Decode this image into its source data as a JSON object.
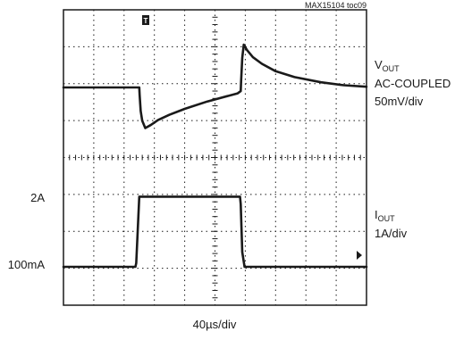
{
  "chart_data": {
    "type": "line",
    "figure_id": "MAX15104 toc09",
    "xlabel": "40µs/div",
    "x_unit": "µs",
    "xlim": [
      0,
      400
    ],
    "grid": "10x8 divisions, dotted",
    "right_labels": {
      "vout": {
        "name": "V",
        "sub": "OUT",
        "line2": "AC-COUPLED",
        "line3": "50mV/div"
      },
      "iout": {
        "name": "I",
        "sub": "OUT",
        "line2": "1A/div"
      }
    },
    "left_labels": {
      "high": "2A",
      "low": "100mA"
    },
    "trigger_marker": "T",
    "series": [
      {
        "name": "VOUT",
        "unit": "mV",
        "x": [
          0,
          100,
          100.5,
          102,
          104,
          108,
          115,
          125,
          140,
          160,
          190,
          230,
          234,
          234.5,
          236,
          238,
          242,
          250,
          262,
          280,
          305,
          340,
          370,
          400
        ],
        "y": [
          0,
          0,
          -10,
          -32,
          -45,
          -55,
          -51,
          -44,
          -37,
          -29,
          -19,
          -8,
          -5,
          8,
          40,
          58,
          51,
          41,
          32,
          22,
          14,
          7,
          3,
          1
        ]
      },
      {
        "name": "IOUT",
        "unit": "A",
        "x": [
          0,
          95,
          96,
          100,
          233,
          234,
          236,
          239,
          400
        ],
        "y": [
          0.1,
          0.1,
          0.2,
          2.0,
          2.0,
          1.8,
          0.5,
          0.1,
          0.1
        ]
      }
    ]
  }
}
